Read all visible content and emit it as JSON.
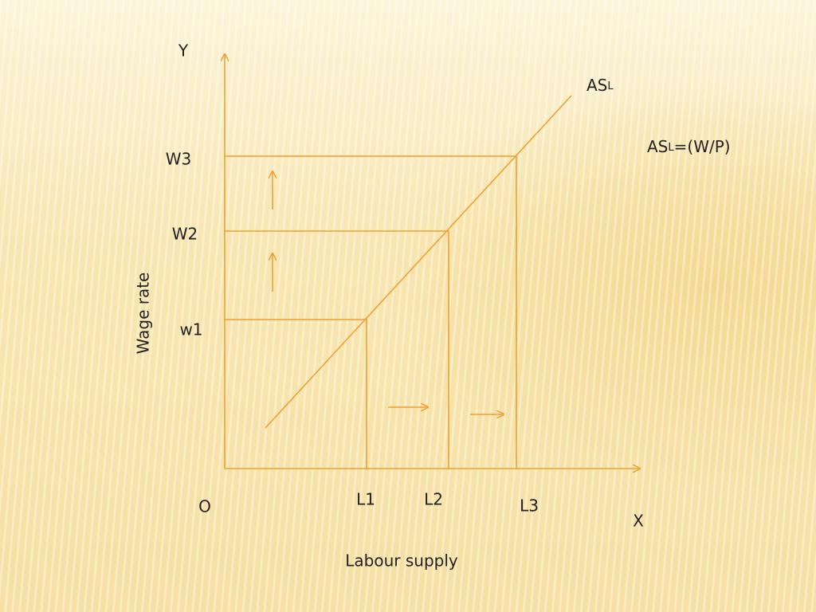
{
  "labels": {
    "y_axis": "Y",
    "x_axis": "X",
    "origin": "O",
    "y_title": "Wage rate",
    "x_title": "Labour supply"
  },
  "wage_levels": [
    "w1",
    "W2",
    "W3"
  ],
  "labour_levels": [
    "L1",
    "L2",
    "L3"
  ],
  "curve": {
    "label": "AS",
    "subscript": "L"
  },
  "equation": {
    "lhs": "AS",
    "subscript": "L",
    "rhs": "=(W/P)"
  }
}
